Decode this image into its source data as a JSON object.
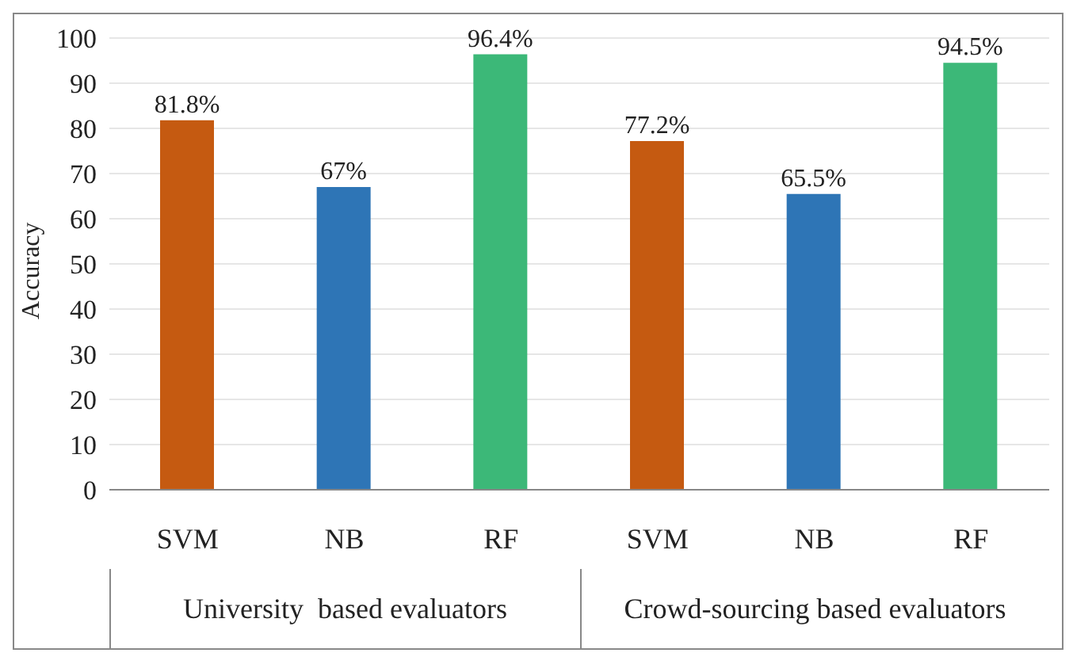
{
  "chart_data": {
    "type": "bar",
    "ylabel": "Accuracy",
    "categories": [
      "SVM",
      "NB",
      "RF",
      "SVM",
      "NB",
      "RF"
    ],
    "values": [
      81.8,
      67,
      96.4,
      77.2,
      65.5,
      94.5
    ],
    "value_labels": [
      "81.8%",
      "67%",
      "96.4%",
      "77.2%",
      "65.5%",
      "94.5%"
    ],
    "colors": [
      "#c55a11",
      "#2e75b6",
      "#3cb878",
      "#c55a11",
      "#2e75b6",
      "#3cb878"
    ],
    "ylim": [
      0,
      100
    ],
    "yticks": [
      0,
      10,
      20,
      30,
      40,
      50,
      60,
      70,
      80,
      90,
      100
    ],
    "annotations": [
      "University  based evaluators",
      "Crowd-sourcing based evaluators"
    ],
    "grid": "y",
    "legend": false
  }
}
